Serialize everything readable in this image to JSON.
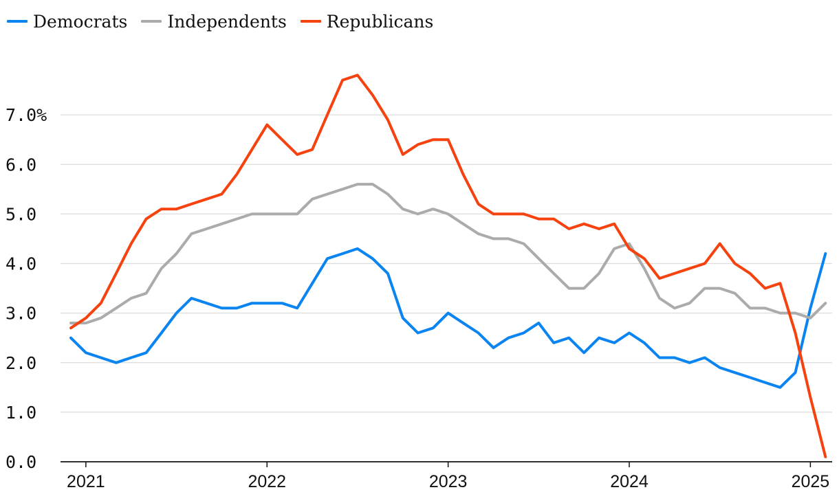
{
  "chart_data": {
    "type": "line",
    "title": "",
    "xlabel": "",
    "ylabel": "",
    "ylim": [
      0,
      8
    ],
    "xlim": [
      2020.86,
      2025.12
    ],
    "y_ticks": [
      {
        "value": 0,
        "label": "0.0"
      },
      {
        "value": 1,
        "label": "1.0"
      },
      {
        "value": 2,
        "label": "2.0"
      },
      {
        "value": 3,
        "label": "3.0"
      },
      {
        "value": 4,
        "label": "4.0"
      },
      {
        "value": 5,
        "label": "5.0"
      },
      {
        "value": 6,
        "label": "6.0"
      },
      {
        "value": 7,
        "label": "7.0%"
      }
    ],
    "x_ticks": [
      {
        "value": 2021,
        "label": "2021"
      },
      {
        "value": 2022,
        "label": "2022"
      },
      {
        "value": 2023,
        "label": "2023"
      },
      {
        "value": 2024,
        "label": "2024"
      },
      {
        "value": 2025,
        "label": "2025"
      }
    ],
    "legend_position": "top-left",
    "x": [
      2020.917,
      2021.0,
      2021.083,
      2021.167,
      2021.25,
      2021.333,
      2021.417,
      2021.5,
      2021.583,
      2021.667,
      2021.75,
      2021.833,
      2021.917,
      2022.0,
      2022.083,
      2022.167,
      2022.25,
      2022.333,
      2022.417,
      2022.5,
      2022.583,
      2022.667,
      2022.75,
      2022.833,
      2022.917,
      2023.0,
      2023.083,
      2023.167,
      2023.25,
      2023.333,
      2023.417,
      2023.5,
      2023.583,
      2023.667,
      2023.75,
      2023.833,
      2023.917,
      2024.0,
      2024.083,
      2024.167,
      2024.25,
      2024.333,
      2024.417,
      2024.5,
      2024.583,
      2024.667,
      2024.75,
      2024.833,
      2024.917,
      2025.0,
      2025.083
    ],
    "series": [
      {
        "name": "Democrats",
        "color": "#0a84f0",
        "values": [
          2.5,
          2.2,
          2.1,
          2.0,
          2.1,
          2.2,
          2.6,
          3.0,
          3.3,
          3.2,
          3.1,
          3.1,
          3.2,
          3.2,
          3.2,
          3.1,
          3.6,
          4.1,
          4.2,
          4.3,
          4.1,
          3.8,
          2.9,
          2.6,
          2.7,
          3.0,
          2.8,
          2.6,
          2.3,
          2.5,
          2.6,
          2.8,
          2.4,
          2.5,
          2.2,
          2.5,
          2.4,
          2.6,
          2.4,
          2.1,
          2.1,
          2.0,
          2.1,
          1.9,
          1.8,
          1.7,
          1.6,
          1.5,
          1.8,
          3.1,
          4.2
        ]
      },
      {
        "name": "Independents",
        "color": "#ababab",
        "values": [
          2.8,
          2.8,
          2.9,
          3.1,
          3.3,
          3.4,
          3.9,
          4.2,
          4.6,
          4.7,
          4.8,
          4.9,
          5.0,
          5.0,
          5.0,
          5.0,
          5.3,
          5.4,
          5.5,
          5.6,
          5.6,
          5.4,
          5.1,
          5.0,
          5.1,
          5.0,
          4.8,
          4.6,
          4.5,
          4.5,
          4.4,
          4.1,
          3.8,
          3.5,
          3.5,
          3.8,
          4.3,
          4.4,
          3.9,
          3.3,
          3.1,
          3.2,
          3.5,
          3.5,
          3.4,
          3.1,
          3.1,
          3.0,
          3.0,
          2.9,
          3.2
        ]
      },
      {
        "name": "Republicans",
        "color": "#f5420f",
        "values": [
          2.7,
          2.9,
          3.2,
          3.8,
          4.4,
          4.9,
          5.1,
          5.1,
          5.2,
          5.3,
          5.4,
          5.8,
          6.3,
          6.8,
          6.5,
          6.2,
          6.3,
          7.0,
          7.7,
          7.8,
          7.4,
          6.9,
          6.2,
          6.4,
          6.5,
          6.5,
          5.8,
          5.2,
          5.0,
          5.0,
          5.0,
          4.9,
          4.9,
          4.7,
          4.8,
          4.7,
          4.8,
          4.3,
          4.1,
          3.7,
          3.8,
          3.9,
          4.0,
          4.4,
          4.0,
          3.8,
          3.5,
          3.6,
          2.6,
          1.3,
          0.1
        ]
      }
    ]
  }
}
